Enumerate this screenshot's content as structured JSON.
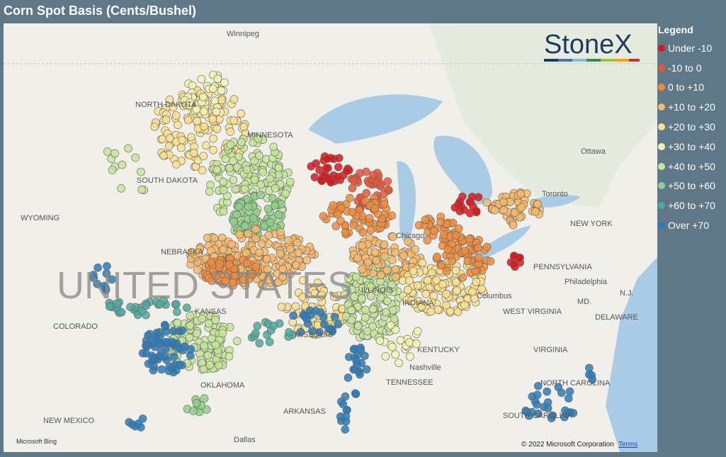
{
  "header": {
    "title": "Corn Spot Basis (Cents/Bushel)"
  },
  "legend": {
    "title": "Legend",
    "items": [
      {
        "label": "Under -10",
        "color": "#d7191c"
      },
      {
        "label": "-10 to 0",
        "color": "#e8553a"
      },
      {
        "label": "0 to +10",
        "color": "#f08c3c"
      },
      {
        "label": "+10 to +20",
        "color": "#f7b86a"
      },
      {
        "label": "+20 to +30",
        "color": "#fbe08f"
      },
      {
        "label": "+30 to +40",
        "color": "#f3f5b0"
      },
      {
        "label": "+40 to +50",
        "color": "#c5e59a"
      },
      {
        "label": "+50 to +60",
        "color": "#8fcf8a"
      },
      {
        "label": "+60 to +70",
        "color": "#4fa9a0"
      },
      {
        "label": "Over +70",
        "color": "#2b7bba"
      }
    ]
  },
  "map": {
    "logo": "StoneX",
    "attribution": "Microsoft Bing",
    "copyright": "© 2022 Microsoft Corporation",
    "terms": "Terms",
    "labels": [
      "Winnipeg",
      "NORTH DAKOTA",
      "MINNESOTA",
      "SOUTH DAKOTA",
      "WYOMING",
      "NEBRASKA",
      "UNITED STATES",
      "COLORADO",
      "KANSAS",
      "MISSOURI",
      "OKLAHOMA",
      "ARKANSAS",
      "NEW MEXICO",
      "Dallas",
      "Chicago",
      "ILLINOIS",
      "INDIANA",
      "Columbus",
      "WEST VIRGINIA",
      "KENTUCKY",
      "Nashville",
      "TENNESSEE",
      "VIRGINIA",
      "NORTH CAROLINA",
      "SOUTH CAROLINA",
      "PENNSYLVANIA",
      "NEW YORK",
      "Philadelphia",
      "Ottawa",
      "Toronto",
      "DELAWARE",
      "MD.",
      "N.J."
    ]
  }
}
